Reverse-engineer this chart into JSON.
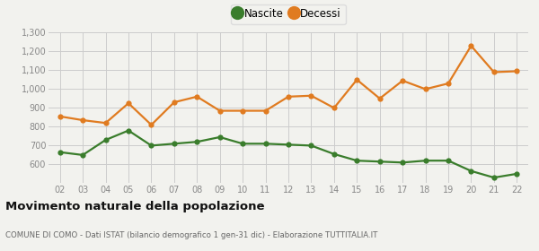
{
  "years": [
    "02",
    "03",
    "04",
    "05",
    "06",
    "07",
    "08",
    "09",
    "10",
    "11",
    "12",
    "13",
    "14",
    "15",
    "16",
    "17",
    "18",
    "19",
    "20",
    "21",
    "22"
  ],
  "nascite": [
    665,
    650,
    730,
    780,
    700,
    710,
    720,
    745,
    710,
    710,
    705,
    700,
    655,
    620,
    615,
    610,
    620,
    620,
    565,
    530,
    550
  ],
  "decessi": [
    855,
    835,
    820,
    925,
    810,
    930,
    960,
    885,
    885,
    885,
    960,
    965,
    900,
    1050,
    950,
    1045,
    1000,
    1030,
    1230,
    1090,
    1095
  ],
  "nascite_color": "#3a7d2c",
  "decessi_color": "#e07b20",
  "marker_size": 4.5,
  "line_width": 1.6,
  "ylim": [
    500,
    1300
  ],
  "yticks": [
    600,
    700,
    800,
    900,
    1000,
    1100,
    1200,
    1300
  ],
  "ytick_labels": [
    "600",
    "700",
    "800",
    "900",
    "1,000",
    "1,100",
    "1,200",
    "1,300"
  ],
  "title": "Movimento naturale della popolazione",
  "subtitle": "COMUNE DI COMO - Dati ISTAT (bilancio demografico 1 gen-31 dic) - Elaborazione TUTTITALIA.IT",
  "legend_nascite": "Nascite",
  "legend_decessi": "Decessi",
  "bg_color": "#f2f2ee",
  "grid_color": "#cccccc"
}
